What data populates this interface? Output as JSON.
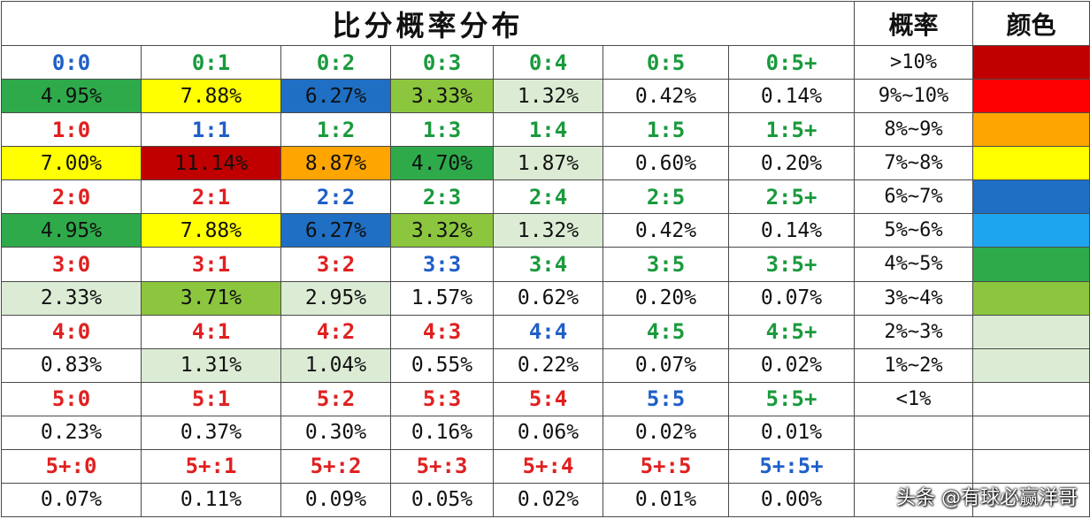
{
  "title": "比分概率分布",
  "header_probability": "概率",
  "header_color": "颜色",
  "score_colors": {
    "red": "#e02020",
    "green": "#1a9a3c",
    "blue": "#1f5fc8"
  },
  "rows": [
    {
      "scores": [
        {
          "text": "0:0",
          "color": "blue"
        },
        {
          "text": "0:1",
          "color": "green"
        },
        {
          "text": "0:2",
          "color": "green"
        },
        {
          "text": "0:3",
          "color": "green"
        },
        {
          "text": "0:4",
          "color": "green"
        },
        {
          "text": "0:5",
          "color": "green"
        },
        {
          "text": "0:5+",
          "color": "green"
        }
      ],
      "probs": [
        {
          "text": "4.95%",
          "bg": "#2eaa4a"
        },
        {
          "text": "7.88%",
          "bg": "#ffff00"
        },
        {
          "text": "6.27%",
          "bg": "#1f6fc4"
        },
        {
          "text": "3.33%",
          "bg": "#8cc63f"
        },
        {
          "text": "1.32%",
          "bg": "#dcecd4"
        },
        {
          "text": "0.42%",
          "bg": "#ffffff"
        },
        {
          "text": "0.14%",
          "bg": "#ffffff"
        }
      ]
    },
    {
      "scores": [
        {
          "text": "1:0",
          "color": "red"
        },
        {
          "text": "1:1",
          "color": "blue"
        },
        {
          "text": "1:2",
          "color": "green"
        },
        {
          "text": "1:3",
          "color": "green"
        },
        {
          "text": "1:4",
          "color": "green"
        },
        {
          "text": "1:5",
          "color": "green"
        },
        {
          "text": "1:5+",
          "color": "green"
        }
      ],
      "probs": [
        {
          "text": "7.00%",
          "bg": "#ffff00"
        },
        {
          "text": "11.14%",
          "bg": "#c00000"
        },
        {
          "text": "8.87%",
          "bg": "#ffa500"
        },
        {
          "text": "4.70%",
          "bg": "#2eaa4a"
        },
        {
          "text": "1.87%",
          "bg": "#dcecd4"
        },
        {
          "text": "0.60%",
          "bg": "#ffffff"
        },
        {
          "text": "0.20%",
          "bg": "#ffffff"
        }
      ]
    },
    {
      "scores": [
        {
          "text": "2:0",
          "color": "red"
        },
        {
          "text": "2:1",
          "color": "red"
        },
        {
          "text": "2:2",
          "color": "blue"
        },
        {
          "text": "2:3",
          "color": "green"
        },
        {
          "text": "2:4",
          "color": "green"
        },
        {
          "text": "2:5",
          "color": "green"
        },
        {
          "text": "2:5+",
          "color": "green"
        }
      ],
      "probs": [
        {
          "text": "4.95%",
          "bg": "#2eaa4a"
        },
        {
          "text": "7.88%",
          "bg": "#ffff00"
        },
        {
          "text": "6.27%",
          "bg": "#1f6fc4"
        },
        {
          "text": "3.32%",
          "bg": "#8cc63f"
        },
        {
          "text": "1.32%",
          "bg": "#dcecd4"
        },
        {
          "text": "0.42%",
          "bg": "#ffffff"
        },
        {
          "text": "0.14%",
          "bg": "#ffffff"
        }
      ]
    },
    {
      "scores": [
        {
          "text": "3:0",
          "color": "red"
        },
        {
          "text": "3:1",
          "color": "red"
        },
        {
          "text": "3:2",
          "color": "red"
        },
        {
          "text": "3:3",
          "color": "blue"
        },
        {
          "text": "3:4",
          "color": "green"
        },
        {
          "text": "3:5",
          "color": "green"
        },
        {
          "text": "3:5+",
          "color": "green"
        }
      ],
      "probs": [
        {
          "text": "2.33%",
          "bg": "#dcecd4"
        },
        {
          "text": "3.71%",
          "bg": "#8cc63f"
        },
        {
          "text": "2.95%",
          "bg": "#dcecd4"
        },
        {
          "text": "1.57%",
          "bg": "#ffffff"
        },
        {
          "text": "0.62%",
          "bg": "#ffffff"
        },
        {
          "text": "0.20%",
          "bg": "#ffffff"
        },
        {
          "text": "0.07%",
          "bg": "#ffffff"
        }
      ]
    },
    {
      "scores": [
        {
          "text": "4:0",
          "color": "red"
        },
        {
          "text": "4:1",
          "color": "red"
        },
        {
          "text": "4:2",
          "color": "red"
        },
        {
          "text": "4:3",
          "color": "red"
        },
        {
          "text": "4:4",
          "color": "blue"
        },
        {
          "text": "4:5",
          "color": "green"
        },
        {
          "text": "4:5+",
          "color": "green"
        }
      ],
      "probs": [
        {
          "text": "0.83%",
          "bg": "#ffffff"
        },
        {
          "text": "1.31%",
          "bg": "#dcecd4"
        },
        {
          "text": "1.04%",
          "bg": "#dcecd4"
        },
        {
          "text": "0.55%",
          "bg": "#ffffff"
        },
        {
          "text": "0.22%",
          "bg": "#ffffff"
        },
        {
          "text": "0.07%",
          "bg": "#ffffff"
        },
        {
          "text": "0.02%",
          "bg": "#ffffff"
        }
      ]
    },
    {
      "scores": [
        {
          "text": "5:0",
          "color": "red"
        },
        {
          "text": "5:1",
          "color": "red"
        },
        {
          "text": "5:2",
          "color": "red"
        },
        {
          "text": "5:3",
          "color": "red"
        },
        {
          "text": "5:4",
          "color": "red"
        },
        {
          "text": "5:5",
          "color": "blue"
        },
        {
          "text": "5:5+",
          "color": "green"
        }
      ],
      "probs": [
        {
          "text": "0.23%",
          "bg": "#ffffff"
        },
        {
          "text": "0.37%",
          "bg": "#ffffff"
        },
        {
          "text": "0.30%",
          "bg": "#ffffff"
        },
        {
          "text": "0.16%",
          "bg": "#ffffff"
        },
        {
          "text": "0.06%",
          "bg": "#ffffff"
        },
        {
          "text": "0.02%",
          "bg": "#ffffff"
        },
        {
          "text": "0.01%",
          "bg": "#ffffff"
        }
      ]
    },
    {
      "scores": [
        {
          "text": "5+:0",
          "color": "red"
        },
        {
          "text": "5+:1",
          "color": "red"
        },
        {
          "text": "5+:2",
          "color": "red"
        },
        {
          "text": "5+:3",
          "color": "red"
        },
        {
          "text": "5+:4",
          "color": "red"
        },
        {
          "text": "5+:5",
          "color": "red"
        },
        {
          "text": "5+:5+",
          "color": "blue"
        }
      ],
      "probs": [
        {
          "text": "0.07%",
          "bg": "#ffffff"
        },
        {
          "text": "0.11%",
          "bg": "#ffffff"
        },
        {
          "text": "0.09%",
          "bg": "#ffffff"
        },
        {
          "text": "0.05%",
          "bg": "#ffffff"
        },
        {
          "text": "0.02%",
          "bg": "#ffffff"
        },
        {
          "text": "0.01%",
          "bg": "#ffffff"
        },
        {
          "text": "0.00%",
          "bg": "#ffffff"
        }
      ]
    }
  ],
  "legend": [
    {
      "range": ">10%",
      "color": "#c00000"
    },
    {
      "range": "9%~10%",
      "color": "#ff0000"
    },
    {
      "range": "8%~9%",
      "color": "#ffa500"
    },
    {
      "range": "7%~8%",
      "color": "#ffff00"
    },
    {
      "range": "6%~7%",
      "color": "#1f6fc4"
    },
    {
      "range": "5%~6%",
      "color": "#1ea5f0"
    },
    {
      "range": "4%~5%",
      "color": "#2eaa4a"
    },
    {
      "range": "3%~4%",
      "color": "#8cc63f"
    },
    {
      "range": "2%~3%",
      "color": "#dcecd4"
    },
    {
      "range": "1%~2%",
      "color": "#dcecd4"
    },
    {
      "range": "<1%",
      "color": "#ffffff"
    },
    {
      "range": "",
      "color": "#ffffff"
    },
    {
      "range": "",
      "color": "#ffffff"
    },
    {
      "range": "",
      "color": "#ffffff"
    }
  ],
  "watermark": "头条 @有球必赢洋哥"
}
